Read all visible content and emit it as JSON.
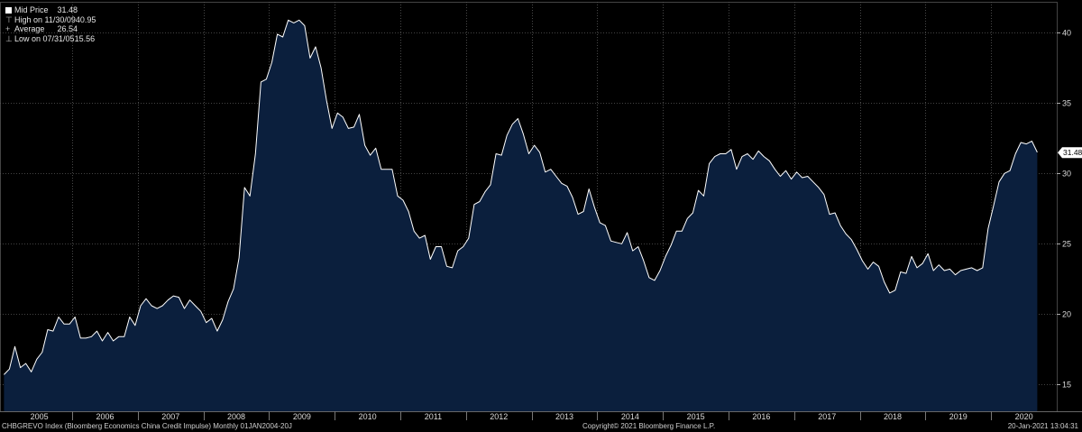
{
  "colors": {
    "background": "#000000",
    "area_fill": "#0b1f3d",
    "line": "#ffffff",
    "grid": "#5a5a5a"
  },
  "legend": {
    "series_name": "Mid Price",
    "series_value": "31.48",
    "high_label": "High on 11/30/09",
    "high_value": "40.95",
    "avg_label": "Average",
    "avg_value": "26.54",
    "low_label": "Low on 07/31/05",
    "low_value": "15.56"
  },
  "last_value_tag": "31.48",
  "footer": {
    "left": "CHBGREVO Index (Bloomberg Economics China Credit Impulse)  Monthly 01JAN2004-20J",
    "center": "Copyright© 2021 Bloomberg Finance L.P.",
    "right": "20-Jan-2021 13:04:31"
  },
  "chart_data": {
    "type": "area",
    "title": "CHBGREVO Index (Bloomberg Economics China Credit Impulse)",
    "series": [
      {
        "name": "Mid Price",
        "x_start": 2004.96,
        "x_step": 0.0833,
        "values": [
          15.7,
          16.1,
          17.7,
          16.2,
          16.5,
          15.9,
          16.8,
          17.3,
          18.9,
          18.8,
          19.8,
          19.3,
          19.3,
          19.8,
          18.3,
          18.3,
          18.4,
          18.8,
          18.1,
          18.7,
          18.1,
          18.4,
          18.4,
          19.8,
          19.2,
          20.6,
          21.1,
          20.6,
          20.4,
          20.6,
          21.0,
          21.3,
          21.2,
          20.4,
          21.0,
          20.6,
          20.2,
          19.4,
          19.7,
          18.8,
          19.6,
          20.9,
          21.8,
          24.0,
          29.0,
          28.4,
          31.4,
          36.5,
          36.7,
          37.9,
          39.9,
          39.7,
          40.9,
          40.7,
          40.9,
          40.5,
          38.2,
          39.0,
          37.5,
          35.2,
          33.2,
          34.3,
          34.0,
          33.2,
          33.3,
          34.2,
          32.0,
          31.3,
          31.8,
          30.3,
          30.3,
          30.3,
          28.4,
          28.1,
          27.3,
          25.9,
          25.4,
          25.6,
          23.9,
          24.8,
          24.8,
          23.4,
          23.3,
          24.5,
          24.8,
          25.4,
          27.8,
          28.0,
          28.7,
          29.2,
          31.4,
          31.3,
          32.7,
          33.5,
          33.9,
          32.8,
          31.4,
          32.0,
          31.5,
          30.1,
          30.3,
          29.8,
          29.3,
          29.1,
          28.3,
          27.1,
          27.3,
          28.9,
          27.6,
          26.5,
          26.3,
          25.2,
          25.1,
          25.0,
          25.8,
          24.5,
          24.8,
          23.8,
          22.6,
          22.4,
          23.1,
          24.1,
          24.9,
          25.9,
          25.9,
          26.8,
          27.2,
          28.8,
          28.4,
          30.7,
          31.2,
          31.4,
          31.4,
          31.7,
          30.3,
          31.2,
          31.4,
          31.0,
          31.6,
          31.2,
          30.9,
          30.3,
          29.8,
          30.2,
          29.6,
          30.1,
          29.7,
          29.8,
          29.4,
          29.0,
          28.5,
          27.1,
          27.2,
          26.3,
          25.7,
          25.3,
          24.6,
          23.8,
          23.2,
          23.7,
          23.4,
          22.3,
          21.5,
          21.7,
          23.0,
          22.9,
          24.1,
          23.3,
          23.6,
          24.3,
          23.1,
          23.5,
          23.1,
          23.2,
          22.8,
          23.1,
          23.2,
          23.3,
          23.1,
          23.3,
          26.1,
          27.7,
          29.4,
          30.0,
          30.2,
          31.4,
          32.2,
          32.1,
          32.3,
          31.5
        ]
      }
    ],
    "x_ticks": [
      "2005",
      "2006",
      "2007",
      "2008",
      "2009",
      "2010",
      "2011",
      "2012",
      "2013",
      "2014",
      "2015",
      "2016",
      "2017",
      "2018",
      "2019",
      "2020"
    ],
    "y_ticks": [
      15,
      20,
      25,
      30,
      35,
      40
    ],
    "ylim": [
      13.1,
      42.2
    ],
    "xlim": [
      2004.9,
      2021.0
    ],
    "annotations": [
      {
        "label": "High on 11/30/09",
        "value": 40.95
      },
      {
        "label": "Average",
        "value": 26.54
      },
      {
        "label": "Low on 07/31/05",
        "value": 15.56
      }
    ]
  }
}
